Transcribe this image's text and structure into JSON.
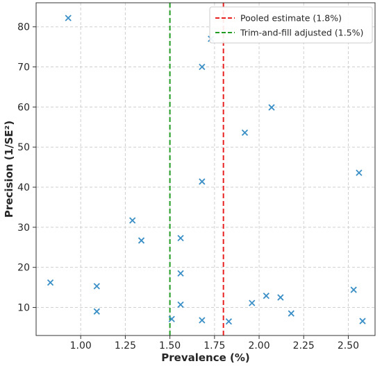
{
  "chart_data": {
    "type": "scatter",
    "xlabel": "Prevalence (%)",
    "ylabel": "Precision (1/SE²)",
    "xlim": [
      0.75,
      2.65
    ],
    "ylim": [
      3,
      86
    ],
    "x_ticks": [
      1.0,
      1.25,
      1.5,
      1.75,
      2.0,
      2.25,
      2.5
    ],
    "x_tick_labels": [
      "1.00",
      "1.25",
      "1.50",
      "1.75",
      "2.00",
      "2.25",
      "2.50"
    ],
    "y_ticks": [
      10,
      20,
      30,
      40,
      50,
      60,
      70,
      80
    ],
    "y_tick_labels": [
      "10",
      "20",
      "30",
      "40",
      "50",
      "60",
      "70",
      "80"
    ],
    "grid": true,
    "marker": "x",
    "marker_color": "#3b8fc7",
    "points": [
      {
        "x": 0.83,
        "y": 16.2
      },
      {
        "x": 0.93,
        "y": 82.2
      },
      {
        "x": 1.09,
        "y": 9.0
      },
      {
        "x": 1.09,
        "y": 15.3
      },
      {
        "x": 1.29,
        "y": 31.7
      },
      {
        "x": 1.34,
        "y": 26.7
      },
      {
        "x": 1.51,
        "y": 7.1
      },
      {
        "x": 1.56,
        "y": 27.3
      },
      {
        "x": 1.56,
        "y": 18.5
      },
      {
        "x": 1.56,
        "y": 10.7
      },
      {
        "x": 1.68,
        "y": 70.0
      },
      {
        "x": 1.68,
        "y": 41.4
      },
      {
        "x": 1.68,
        "y": 6.8
      },
      {
        "x": 1.73,
        "y": 77.0
      },
      {
        "x": 1.83,
        "y": 6.5
      },
      {
        "x": 1.92,
        "y": 53.6
      },
      {
        "x": 1.96,
        "y": 11.1
      },
      {
        "x": 2.04,
        "y": 12.9
      },
      {
        "x": 2.07,
        "y": 59.9
      },
      {
        "x": 2.12,
        "y": 12.5
      },
      {
        "x": 2.18,
        "y": 8.5
      },
      {
        "x": 2.53,
        "y": 14.4
      },
      {
        "x": 2.56,
        "y": 43.6
      },
      {
        "x": 2.58,
        "y": 6.6
      }
    ],
    "reference_lines": [
      {
        "x": 1.8,
        "color": "#e8201f",
        "label": "Pooled estimate (1.8%)"
      },
      {
        "x": 1.5,
        "color": "#229b22",
        "label": "Trim-and-fill adjusted (1.5%)"
      }
    ],
    "legend_position": "top-right"
  }
}
